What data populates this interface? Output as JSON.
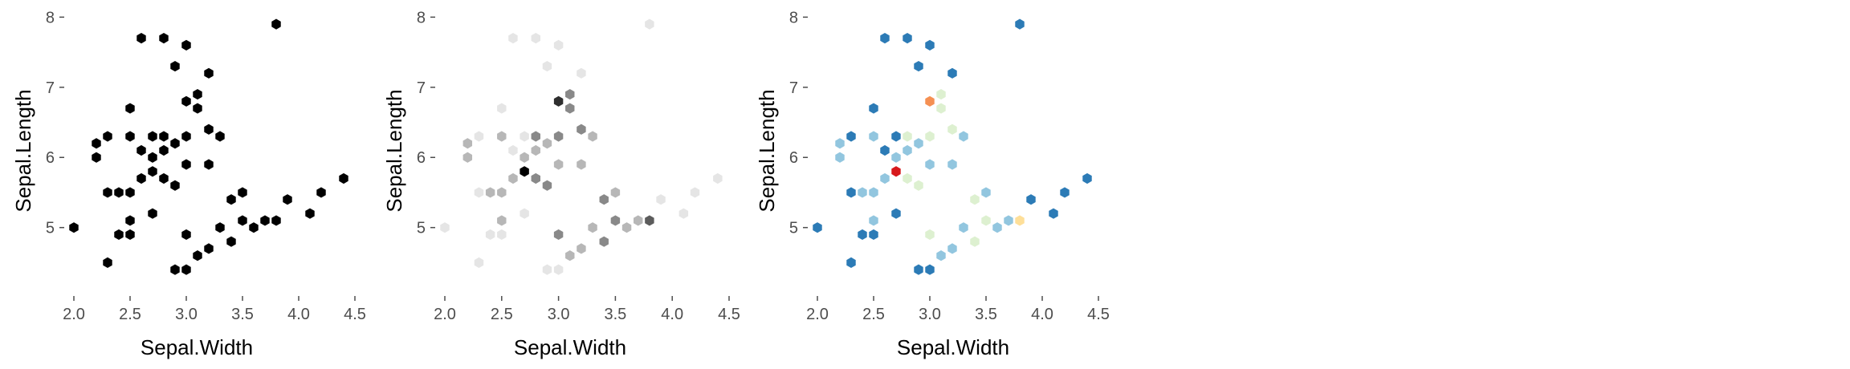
{
  "chart_data": [
    {
      "type": "hexbin",
      "xlabel": "Sepal.Width",
      "ylabel": "Sepal.Length",
      "xticks": [
        "2.0",
        "2.5",
        "3.0",
        "3.5",
        "4.0",
        "4.5"
      ],
      "yticks": [
        "5",
        "6",
        "7",
        "8"
      ],
      "xlim": [
        2.0,
        4.5
      ],
      "ylim": [
        4.3,
        7.9
      ],
      "fill_mode": "single",
      "color": "#000000",
      "bins": [
        [
          2.0,
          5.0
        ],
        [
          2.2,
          6.2
        ],
        [
          2.2,
          6.0
        ],
        [
          2.3,
          4.5
        ],
        [
          2.3,
          5.5
        ],
        [
          2.3,
          6.3
        ],
        [
          2.4,
          4.9
        ],
        [
          2.4,
          5.5
        ],
        [
          2.5,
          4.9
        ],
        [
          2.5,
          5.1
        ],
        [
          2.5,
          5.5
        ],
        [
          2.5,
          6.3
        ],
        [
          2.5,
          6.7
        ],
        [
          2.6,
          5.7
        ],
        [
          2.6,
          6.1
        ],
        [
          2.6,
          7.7
        ],
        [
          2.7,
          5.2
        ],
        [
          2.7,
          5.8
        ],
        [
          2.7,
          6.0
        ],
        [
          2.7,
          6.3
        ],
        [
          2.8,
          5.7
        ],
        [
          2.8,
          6.1
        ],
        [
          2.8,
          6.3
        ],
        [
          2.8,
          7.7
        ],
        [
          2.9,
          4.4
        ],
        [
          2.9,
          5.6
        ],
        [
          2.9,
          6.2
        ],
        [
          2.9,
          7.3
        ],
        [
          3.0,
          4.4
        ],
        [
          3.0,
          4.9
        ],
        [
          3.0,
          5.9
        ],
        [
          3.0,
          6.3
        ],
        [
          3.0,
          6.8
        ],
        [
          3.0,
          7.6
        ],
        [
          3.1,
          4.6
        ],
        [
          3.1,
          6.7
        ],
        [
          3.1,
          6.9
        ],
        [
          3.2,
          4.7
        ],
        [
          3.2,
          5.9
        ],
        [
          3.2,
          6.4
        ],
        [
          3.2,
          7.2
        ],
        [
          3.3,
          5.0
        ],
        [
          3.3,
          6.3
        ],
        [
          3.4,
          4.8
        ],
        [
          3.4,
          5.4
        ],
        [
          3.5,
          5.1
        ],
        [
          3.5,
          5.5
        ],
        [
          3.6,
          5.0
        ],
        [
          3.7,
          5.1
        ],
        [
          3.8,
          5.1
        ],
        [
          3.8,
          7.9
        ],
        [
          3.9,
          5.4
        ],
        [
          4.1,
          5.2
        ],
        [
          4.2,
          5.5
        ],
        [
          4.4,
          5.7
        ]
      ]
    },
    {
      "type": "hexbin",
      "xlabel": "Sepal.Width",
      "ylabel": "Sepal.Length",
      "xticks": [
        "2.0",
        "2.5",
        "3.0",
        "3.5",
        "4.0",
        "4.5"
      ],
      "yticks": [
        "5",
        "6",
        "7",
        "8"
      ],
      "xlim": [
        2.0,
        4.5
      ],
      "ylim": [
        4.3,
        7.9
      ],
      "fill_mode": "gradient",
      "gradient": [
        "#e5e5e5",
        "#000000"
      ],
      "bins": [
        [
          2.0,
          5.0,
          1
        ],
        [
          2.2,
          6.2,
          2
        ],
        [
          2.2,
          6.0,
          2
        ],
        [
          2.3,
          4.5,
          1
        ],
        [
          2.3,
          5.5,
          1
        ],
        [
          2.3,
          6.3,
          1
        ],
        [
          2.4,
          4.9,
          1
        ],
        [
          2.4,
          5.5,
          2
        ],
        [
          2.5,
          4.9,
          1
        ],
        [
          2.5,
          5.1,
          2
        ],
        [
          2.5,
          5.5,
          2
        ],
        [
          2.5,
          6.3,
          2
        ],
        [
          2.5,
          6.7,
          1
        ],
        [
          2.6,
          5.7,
          2
        ],
        [
          2.6,
          6.1,
          1
        ],
        [
          2.6,
          7.7,
          1
        ],
        [
          2.7,
          5.2,
          1
        ],
        [
          2.7,
          5.8,
          6
        ],
        [
          2.7,
          6.0,
          2
        ],
        [
          2.7,
          6.3,
          1
        ],
        [
          2.8,
          5.7,
          3
        ],
        [
          2.8,
          6.1,
          2
        ],
        [
          2.8,
          6.3,
          3
        ],
        [
          2.8,
          7.7,
          1
        ],
        [
          2.9,
          4.4,
          1
        ],
        [
          2.9,
          5.6,
          3
        ],
        [
          2.9,
          6.2,
          2
        ],
        [
          2.9,
          7.3,
          1
        ],
        [
          3.0,
          4.4,
          1
        ],
        [
          3.0,
          4.9,
          3
        ],
        [
          3.0,
          5.9,
          2
        ],
        [
          3.0,
          6.3,
          3
        ],
        [
          3.0,
          6.8,
          5
        ],
        [
          3.0,
          7.6,
          1
        ],
        [
          3.1,
          4.6,
          2
        ],
        [
          3.1,
          6.7,
          3
        ],
        [
          3.1,
          6.9,
          3
        ],
        [
          3.2,
          4.7,
          2
        ],
        [
          3.2,
          5.9,
          2
        ],
        [
          3.2,
          6.4,
          3
        ],
        [
          3.2,
          7.2,
          1
        ],
        [
          3.3,
          5.0,
          2
        ],
        [
          3.3,
          6.3,
          2
        ],
        [
          3.4,
          4.8,
          3
        ],
        [
          3.4,
          5.4,
          3
        ],
        [
          3.5,
          5.1,
          3
        ],
        [
          3.5,
          5.5,
          2
        ],
        [
          3.6,
          5.0,
          2
        ],
        [
          3.7,
          5.1,
          2
        ],
        [
          3.8,
          5.1,
          4
        ],
        [
          3.8,
          7.9,
          1
        ],
        [
          3.9,
          5.4,
          1
        ],
        [
          4.1,
          5.2,
          1
        ],
        [
          4.2,
          5.5,
          1
        ],
        [
          4.4,
          5.7,
          1
        ]
      ]
    },
    {
      "type": "hexbin",
      "xlabel": "Sepal.Width",
      "ylabel": "Sepal.Length",
      "xticks": [
        "2.0",
        "2.5",
        "3.0",
        "3.5",
        "4.0",
        "4.5"
      ],
      "yticks": [
        "5",
        "6",
        "7",
        "8"
      ],
      "xlim": [
        2.0,
        4.5
      ],
      "ylim": [
        4.3,
        7.9
      ],
      "fill_mode": "gradient",
      "gradient": [
        "#2c7bb6",
        "#abd9e9",
        "#ffffbf",
        "#fdae61",
        "#d7191c"
      ],
      "bins": [
        [
          2.0,
          5.0,
          1
        ],
        [
          2.2,
          6.2,
          2
        ],
        [
          2.2,
          6.0,
          2
        ],
        [
          2.3,
          4.5,
          1
        ],
        [
          2.3,
          5.5,
          1
        ],
        [
          2.3,
          6.3,
          1
        ],
        [
          2.4,
          4.9,
          1
        ],
        [
          2.4,
          5.5,
          2
        ],
        [
          2.5,
          4.9,
          1
        ],
        [
          2.5,
          5.1,
          2
        ],
        [
          2.5,
          5.5,
          2
        ],
        [
          2.5,
          6.3,
          2
        ],
        [
          2.5,
          6.7,
          1
        ],
        [
          2.6,
          5.7,
          2
        ],
        [
          2.6,
          6.1,
          1
        ],
        [
          2.6,
          7.7,
          1
        ],
        [
          2.7,
          5.2,
          1
        ],
        [
          2.7,
          5.8,
          6
        ],
        [
          2.7,
          6.0,
          2
        ],
        [
          2.7,
          6.3,
          1
        ],
        [
          2.8,
          5.7,
          3
        ],
        [
          2.8,
          6.1,
          2
        ],
        [
          2.8,
          6.3,
          3
        ],
        [
          2.8,
          7.7,
          1
        ],
        [
          2.9,
          4.4,
          1
        ],
        [
          2.9,
          5.6,
          3
        ],
        [
          2.9,
          6.2,
          2
        ],
        [
          2.9,
          7.3,
          1
        ],
        [
          3.0,
          4.4,
          1
        ],
        [
          3.0,
          4.9,
          3
        ],
        [
          3.0,
          5.9,
          2
        ],
        [
          3.0,
          6.3,
          3
        ],
        [
          3.0,
          6.8,
          5
        ],
        [
          3.0,
          7.6,
          1
        ],
        [
          3.1,
          4.6,
          2
        ],
        [
          3.1,
          6.7,
          3
        ],
        [
          3.1,
          6.9,
          3
        ],
        [
          3.2,
          4.7,
          2
        ],
        [
          3.2,
          5.9,
          2
        ],
        [
          3.2,
          6.4,
          3
        ],
        [
          3.2,
          7.2,
          1
        ],
        [
          3.3,
          5.0,
          2
        ],
        [
          3.3,
          6.3,
          2
        ],
        [
          3.4,
          4.8,
          3
        ],
        [
          3.4,
          5.4,
          3
        ],
        [
          3.5,
          5.1,
          3
        ],
        [
          3.5,
          5.5,
          2
        ],
        [
          3.6,
          5.0,
          2
        ],
        [
          3.7,
          5.1,
          2
        ],
        [
          3.8,
          5.1,
          4
        ],
        [
          3.8,
          7.9,
          1
        ],
        [
          3.9,
          5.4,
          1
        ],
        [
          4.1,
          5.2,
          1
        ],
        [
          4.2,
          5.5,
          1
        ],
        [
          4.4,
          5.7,
          1
        ]
      ]
    }
  ]
}
